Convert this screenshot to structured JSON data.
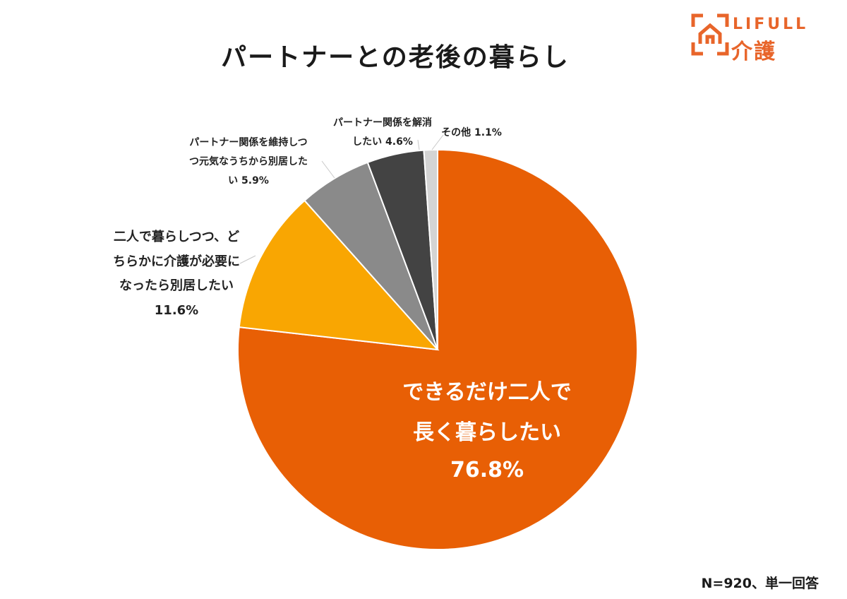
{
  "title": "パートナーとの老後の暮らし",
  "logo": {
    "en": "LIFULL",
    "jp": "介護",
    "color": "#E8652A"
  },
  "footnote": "N=920、単一回答",
  "chart_data": {
    "type": "pie",
    "title": "パートナーとの老後の暮らし",
    "start": "12 o'clock",
    "direction": "clockwise",
    "slices": [
      {
        "label": "できるだけ二人で長く暮らしたい",
        "value": 76.8,
        "display": "76.8%",
        "color": "#E85F05",
        "label_lines": [
          "できるだけ二人で",
          "長く暮らしたい",
          "76.8%"
        ],
        "label_position": "inside"
      },
      {
        "label": "二人で暮らしつつ、どちらかに介護が必要になったら別居したい",
        "value": 11.6,
        "display": "11.6%",
        "color": "#F9A602",
        "label_lines": [
          "二人で暮らしつつ、ど",
          "ちらかに介護が必要に",
          "なったら別居したい",
          "11.6%"
        ],
        "label_position": "outside-left"
      },
      {
        "label": "パートナー関係を維持しつつ元気なうちから別居したい",
        "value": 5.9,
        "display": "5.9%",
        "color": "#8A8A8A",
        "label_lines": [
          "パートナー関係を維持しつ",
          "つ元気なうちから別居した",
          "い 5.9%"
        ],
        "label_position": "outside-top-left"
      },
      {
        "label": "パートナー関係を解消したい",
        "value": 4.6,
        "display": "4.6%",
        "color": "#434343",
        "label_lines": [
          "パートナー関係を解消",
          "したい 4.6%"
        ],
        "label_position": "outside-top"
      },
      {
        "label": "その他",
        "value": 1.1,
        "display": "1.1%",
        "color": "#D4D4D4",
        "label_lines": [
          "その他 1.1%"
        ],
        "label_position": "outside-top-right"
      }
    ]
  }
}
